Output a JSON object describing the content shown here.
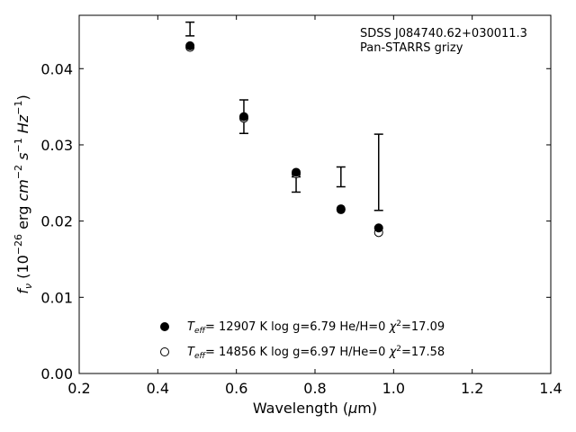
{
  "chart_data": {
    "type": "scatter",
    "xlabel": "Wavelength (μm)",
    "ylabel": "f_ν (10^-26 erg cm^-2 s^-1 Hz^-1)",
    "xlim": [
      0.2,
      1.4
    ],
    "ylim": [
      0.0,
      0.047
    ],
    "x_ticks": [
      0.2,
      0.4,
      0.6,
      0.8,
      1.0,
      1.2,
      1.4
    ],
    "x_tick_labels": [
      "0.2",
      "0.4",
      "0.6",
      "0.8",
      "1.0",
      "1.2",
      "1.4"
    ],
    "y_ticks": [
      0.0,
      0.01,
      0.02,
      0.03,
      0.04
    ],
    "y_tick_labels": [
      "0.00",
      "0.01",
      "0.02",
      "0.03",
      "0.04"
    ],
    "grid": false,
    "annotation_lines": [
      "SDSS J084740.62+030011.3",
      "Pan-STARRS grizy"
    ],
    "observed": {
      "x": [
        0.482,
        0.619,
        0.752,
        0.866,
        0.962
      ],
      "y": [
        0.0452,
        0.0337,
        0.0248,
        0.0258,
        0.0264
      ],
      "yerr": [
        0.0009,
        0.0022,
        0.001,
        0.0013,
        0.005
      ]
    },
    "series": [
      {
        "marker": "filled",
        "label_main": "= 12907 K  log g=6.79  He/H=0  ",
        "chi2_value": "=17.09",
        "x": [
          0.482,
          0.619,
          0.752,
          0.866,
          0.962
        ],
        "y": [
          0.043,
          0.0337,
          0.0264,
          0.0216,
          0.0191
        ]
      },
      {
        "marker": "open",
        "label_main": "= 14856 K  log g=6.97  H/He=0  ",
        "chi2_value": "=17.58",
        "x": [
          0.482,
          0.619,
          0.752,
          0.866,
          0.962
        ],
        "y": [
          0.0428,
          0.0335,
          0.0262,
          0.0215,
          0.0185
        ]
      }
    ],
    "legend_location": "lower-center",
    "colors": {
      "marker": "#000000",
      "axes": "#000000",
      "background": "#ffffff"
    }
  }
}
